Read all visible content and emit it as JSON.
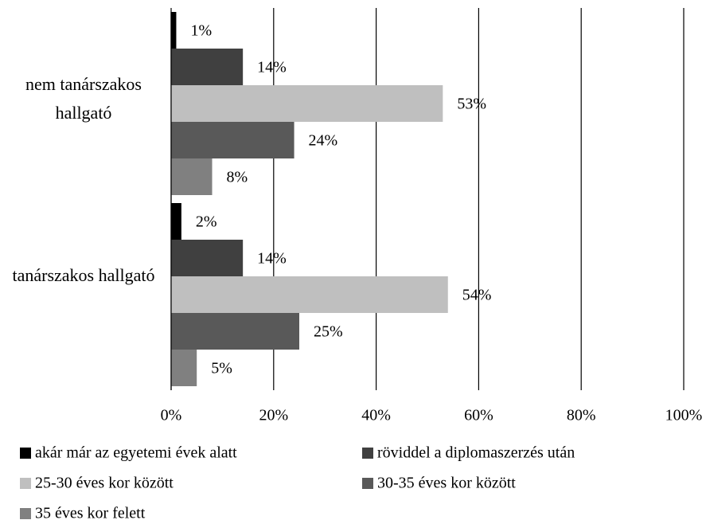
{
  "chart_data": {
    "type": "hbar",
    "categories": [
      "nem tanárszakos hallgató",
      "tanárszakos hallgató"
    ],
    "series": [
      {
        "name": "akár már az egyetemi évek alatt",
        "color": "#000000",
        "values": [
          1,
          2
        ],
        "value_labels": [
          "1%",
          "2%"
        ]
      },
      {
        "name": "röviddel a diplomaszerzés után",
        "color": "#404040",
        "values": [
          14,
          14
        ],
        "value_labels": [
          "14%",
          "14%"
        ]
      },
      {
        "name": "25-30 éves kor között",
        "color": "#bfbfbf",
        "values": [
          53,
          54
        ],
        "value_labels": [
          "53%",
          "54%"
        ]
      },
      {
        "name": "30-35 éves kor között",
        "color": "#595959",
        "values": [
          24,
          25
        ],
        "value_labels": [
          "24%",
          "25%"
        ]
      },
      {
        "name": "35 éves kor felett",
        "color": "#808080",
        "values": [
          8,
          5
        ],
        "value_labels": [
          "8%",
          "5%"
        ]
      }
    ],
    "xlim": [
      0,
      100
    ],
    "xticks": [
      {
        "value": 0,
        "label": "0%"
      },
      {
        "value": 20,
        "label": "20%"
      },
      {
        "value": 40,
        "label": "40%"
      },
      {
        "value": 60,
        "label": "60%"
      },
      {
        "value": 80,
        "label": "80%"
      },
      {
        "value": 100,
        "label": "100%"
      }
    ],
    "grid": true
  }
}
